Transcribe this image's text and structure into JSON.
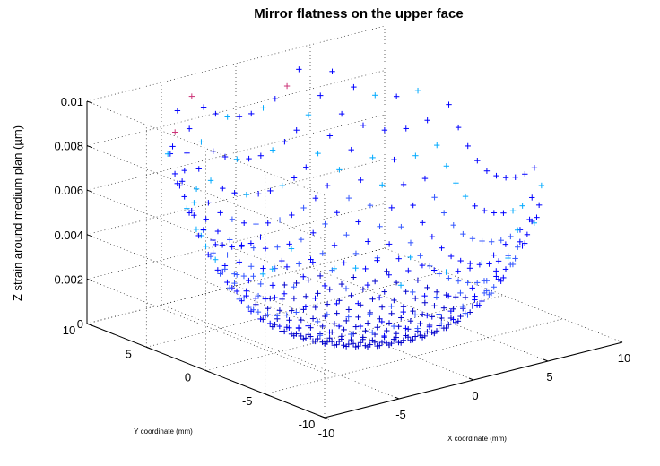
{
  "chart_data": {
    "type": "scatter",
    "subtype": "3d-surface-plus-markers",
    "title": "Mirror flatness on the upper face",
    "xlabel": "X coordinate (mm)",
    "ylabel": "Y coordinate (mm)",
    "zlabel": "Z strain around medium plan (µm)",
    "xlim": [
      -10,
      10
    ],
    "ylim": [
      -10,
      10
    ],
    "zlim": [
      0,
      0.01
    ],
    "x_ticks": [
      "-10",
      "-5",
      "0",
      "5",
      "10"
    ],
    "y_ticks": [
      "-10",
      "-5",
      "0",
      "5",
      "10"
    ],
    "z_ticks": [
      "0",
      "0.002",
      "0.004",
      "0.006",
      "0.008",
      "0.01"
    ],
    "grid": true,
    "marker": "+",
    "marker_colors": [
      "#0000cc",
      "#0000ff",
      "#3355ff",
      "#00aaff",
      "#cc3377"
    ],
    "surface": {
      "domain": "disc",
      "radius_mm": 10,
      "grid_step_mm": 0.8,
      "z_min": 0.0,
      "z_max": 0.0099,
      "z_at_x_extreme": 0.0074,
      "z_at_y_extreme": 0.0075,
      "z_center": 0.0003
    }
  }
}
